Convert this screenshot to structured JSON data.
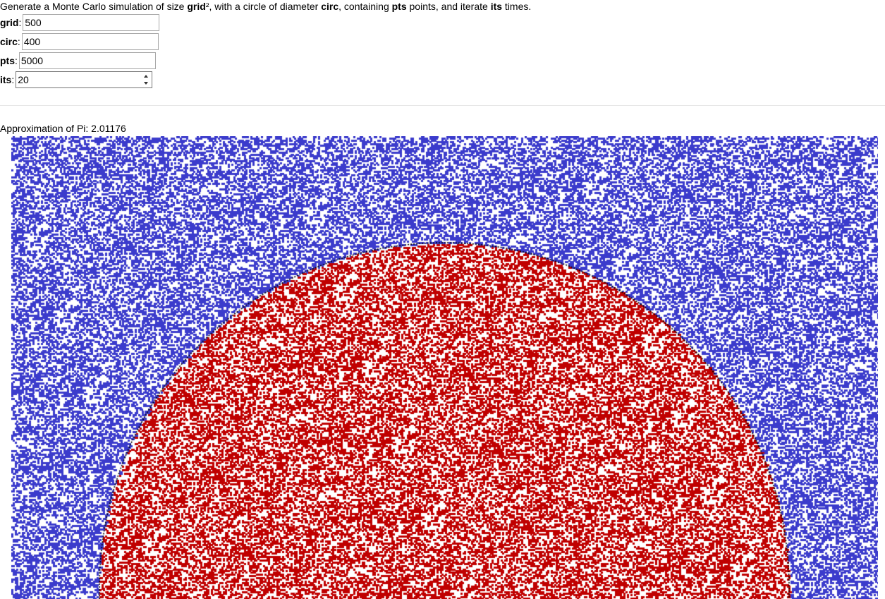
{
  "intro": {
    "t1": "Generate a Monte Carlo simulation of size ",
    "b1": "grid",
    "t2": "², with a circle of diameter ",
    "b2": "circ",
    "t3": ", containing ",
    "b3": "pts",
    "t4": " points, and iterate ",
    "b4": "its",
    "t5": " times."
  },
  "form": {
    "grid": {
      "label": "grid",
      "value": "500"
    },
    "circ": {
      "label": "circ",
      "value": "400"
    },
    "pts": {
      "label": "pts",
      "value": "5000"
    },
    "its": {
      "label": "its",
      "value": "20"
    },
    "colon": ":"
  },
  "result": {
    "text": "Approximation of Pi: 2.01176"
  },
  "plot": {
    "grid": 500,
    "circ": 400,
    "inside_color": "#c00000",
    "outside_color": "#3b3bcc",
    "boundary_color": "#000000",
    "background": "#ffffff"
  }
}
